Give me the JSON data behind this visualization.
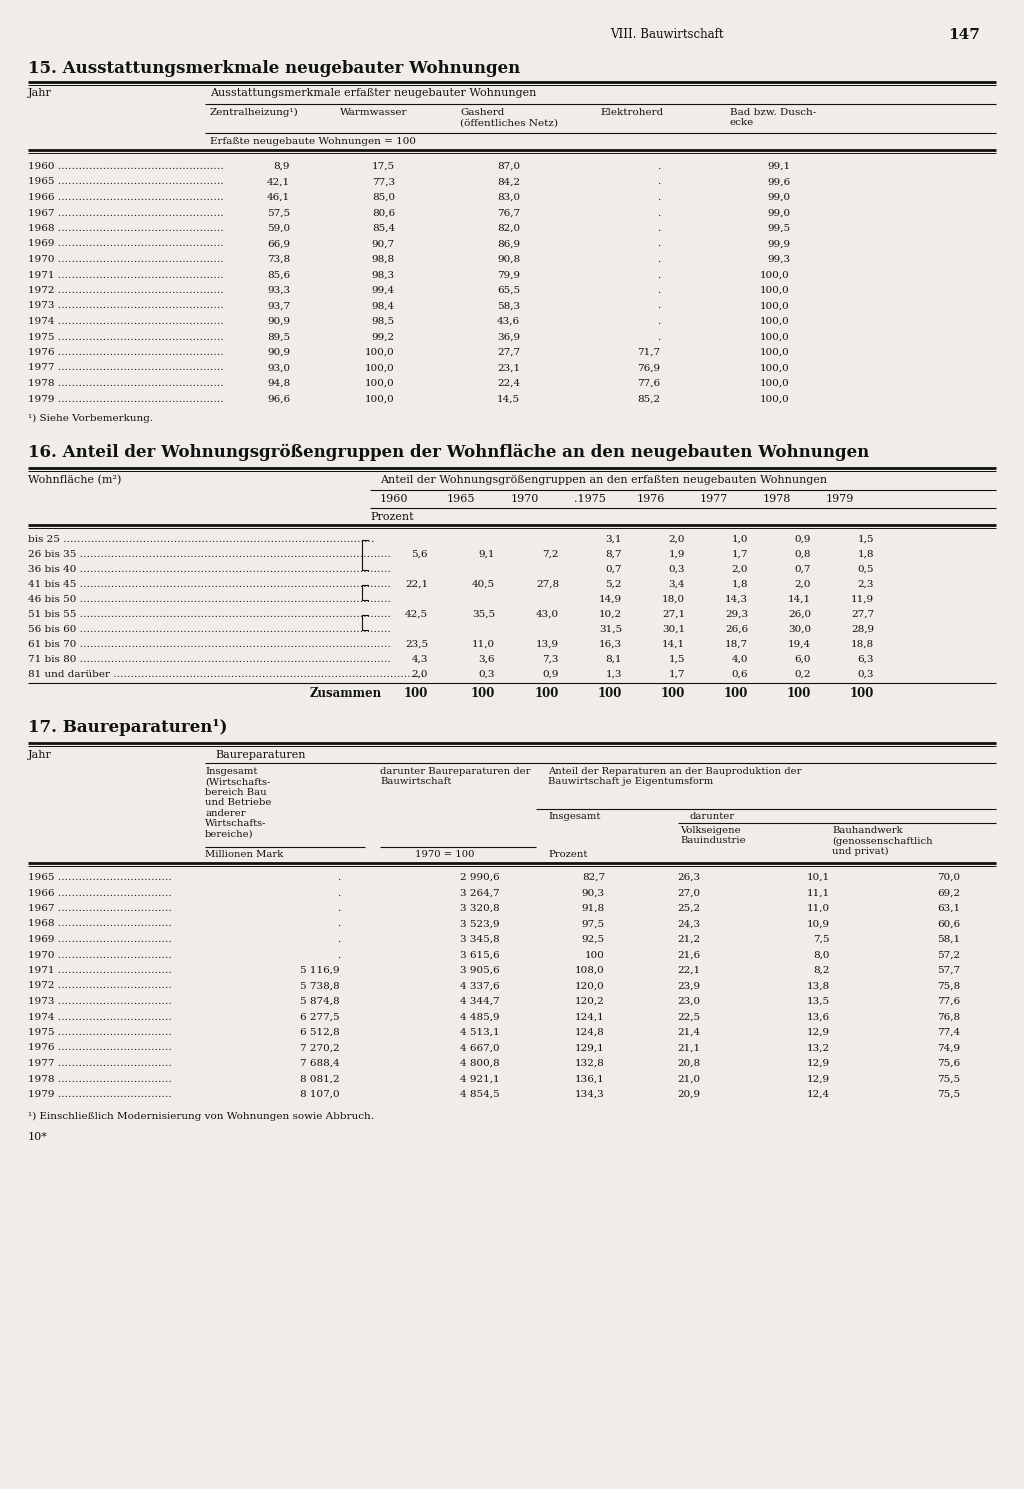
{
  "page_header": "VIII. Bauwirtschaft",
  "page_number": "147",
  "bg": "#f0ede8",
  "tc": "#111111",
  "s15_title": "15. Ausstattungsmerkmale neugebauter Wohnungen",
  "s15_subcols": [
    "Zentralheizung¹)",
    "Warmwasser",
    "Gasherd\n(öffentliches Netz)",
    "Elektroherd",
    "Bad bzw. Dusch-\necke"
  ],
  "s15_subheader": "Erfaßte neugebaute Wohnungen = 100",
  "s15_data": [
    [
      "1960",
      "8,9",
      "17,5",
      "87,0",
      ".",
      "99,1"
    ],
    [
      "1965",
      "42,1",
      "77,3",
      "84,2",
      ".",
      "99,6"
    ],
    [
      "1966",
      "46,1",
      "85,0",
      "83,0",
      ".",
      "99,0"
    ],
    [
      "1967",
      "57,5",
      "80,6",
      "76,7",
      ".",
      "99,0"
    ],
    [
      "1968",
      "59,0",
      "85,4",
      "82,0",
      ".",
      "99,5"
    ],
    [
      "1969",
      "66,9",
      "90,7",
      "86,9",
      ".",
      "99,9"
    ],
    [
      "1970",
      "73,8",
      "98,8",
      "90,8",
      ".",
      "99,3"
    ],
    [
      "1971",
      "85,6",
      "98,3",
      "79,9",
      ".",
      "100,0"
    ],
    [
      "1972",
      "93,3",
      "99,4",
      "65,5",
      ".",
      "100,0"
    ],
    [
      "1973",
      "93,7",
      "98,4",
      "58,3",
      ".",
      "100,0"
    ],
    [
      "1974",
      "90,9",
      "98,5",
      "43,6",
      ".",
      "100,0"
    ],
    [
      "1975",
      "89,5",
      "99,2",
      "36,9",
      ".",
      "100,0"
    ],
    [
      "1976",
      "90,9",
      "100,0",
      "27,7",
      "71,7",
      "100,0"
    ],
    [
      "1977",
      "93,0",
      "100,0",
      "23,1",
      "76,9",
      "100,0"
    ],
    [
      "1978",
      "94,8",
      "100,0",
      "22,4",
      "77,6",
      "100,0"
    ],
    [
      "1979",
      "96,6",
      "100,0",
      "14,5",
      "85,2",
      "100,0"
    ]
  ],
  "s15_footnote": "¹) Siehe Vorbemerkung.",
  "s16_title": "16. Anteil der Wohnungsgrößengruppen der Wohnfläche an den neugebauten Wohnungen",
  "s16_col1": "Wohnfläche (m²)",
  "s16_header2": "Anteil der Wohnungsgrößengruppen an den erfaßten neugebauten Wohnungen",
  "s16_years": [
    "1960",
    "1965",
    "1970",
    ".1975",
    "1976",
    "1977",
    "1978",
    "1979"
  ],
  "s16_rows": [
    [
      "bis 25",
      "",
      "",
      "",
      "3,1",
      "2,0",
      "1,0",
      "0,9",
      "1,5"
    ],
    [
      "26 bis 35",
      "5,6",
      "9,1",
      "7,2",
      "8,7",
      "1,9",
      "1,7",
      "0,8",
      "1,8"
    ],
    [
      "36 bis 40",
      "",
      "",
      "",
      "0,7",
      "0,3",
      "2,0",
      "0,7",
      "0,5"
    ],
    [
      "41 bis 45",
      "22,1",
      "40,5",
      "27,8",
      "5,2",
      "3,4",
      "1,8",
      "2,0",
      "2,3"
    ],
    [
      "46 bis 50",
      "",
      "",
      "",
      "14,9",
      "18,0",
      "14,3",
      "14,1",
      "11,9"
    ],
    [
      "51 bis 55",
      "42,5",
      "35,5",
      "43,0",
      "10,2",
      "27,1",
      "29,3",
      "26,0",
      "27,7"
    ],
    [
      "56 bis 60",
      "",
      "",
      "",
      "31,5",
      "30,1",
      "26,6",
      "30,0",
      "28,9"
    ],
    [
      "61 bis 70",
      "23,5",
      "11,0",
      "13,9",
      "16,3",
      "14,1",
      "18,7",
      "19,4",
      "18,8"
    ],
    [
      "71 bis 80",
      "4,3",
      "3,6",
      "7,3",
      "8,1",
      "1,5",
      "4,0",
      "6,0",
      "6,3"
    ],
    [
      "81 und darüber",
      "2,0",
      "0,3",
      "0,9",
      "1,3",
      "1,7",
      "0,6",
      "0,2",
      "0,3"
    ]
  ],
  "s16_total": [
    "Zusammen",
    "100",
    "100",
    "100",
    "100",
    "100",
    "100",
    "100",
    "100"
  ],
  "s17_title": "17. Baureparaturen¹)",
  "s17_data": [
    [
      "1965",
      ".",
      "2 990,6",
      "82,7",
      "26,3",
      "10,1",
      "70,0"
    ],
    [
      "1966",
      ".",
      "3 264,7",
      "90,3",
      "27,0",
      "11,1",
      "69,2"
    ],
    [
      "1967",
      ".",
      "3 320,8",
      "91,8",
      "25,2",
      "11,0",
      "63,1"
    ],
    [
      "1968",
      ".",
      "3 523,9",
      "97,5",
      "24,3",
      "10,9",
      "60,6"
    ],
    [
      "1969",
      ".",
      "3 345,8",
      "92,5",
      "21,2",
      "7,5",
      "58,1"
    ],
    [
      "1970",
      ".",
      "3 615,6",
      "100",
      "21,6",
      "8,0",
      "57,2"
    ],
    [
      "1971",
      "5 116,9",
      "3 905,6",
      "108,0",
      "22,1",
      "8,2",
      "57,7"
    ],
    [
      "1972",
      "5 738,8",
      "4 337,6",
      "120,0",
      "23,9",
      "13,8",
      "75,8"
    ],
    [
      "1973",
      "5 874,8",
      "4 344,7",
      "120,2",
      "23,0",
      "13,5",
      "77,6"
    ],
    [
      "1974",
      "6 277,5",
      "4 485,9",
      "124,1",
      "22,5",
      "13,6",
      "76,8"
    ],
    [
      "1975",
      "6 512,8",
      "4 513,1",
      "124,8",
      "21,4",
      "12,9",
      "77,4"
    ],
    [
      "1976",
      "7 270,2",
      "4 667,0",
      "129,1",
      "21,1",
      "13,2",
      "74,9"
    ],
    [
      "1977",
      "7 688,4",
      "4 800,8",
      "132,8",
      "20,8",
      "12,9",
      "75,6"
    ],
    [
      "1978",
      "8 081,2",
      "4 921,1",
      "136,1",
      "21,0",
      "12,9",
      "75,5"
    ],
    [
      "1979",
      "8 107,0",
      "4 854,5",
      "134,3",
      "20,9",
      "12,4",
      "75,5"
    ]
  ],
  "s17_footnote": "¹) Einschließlich Modernisierung von Wohnungen sowie Abbruch.",
  "s17_bottom": "10*"
}
